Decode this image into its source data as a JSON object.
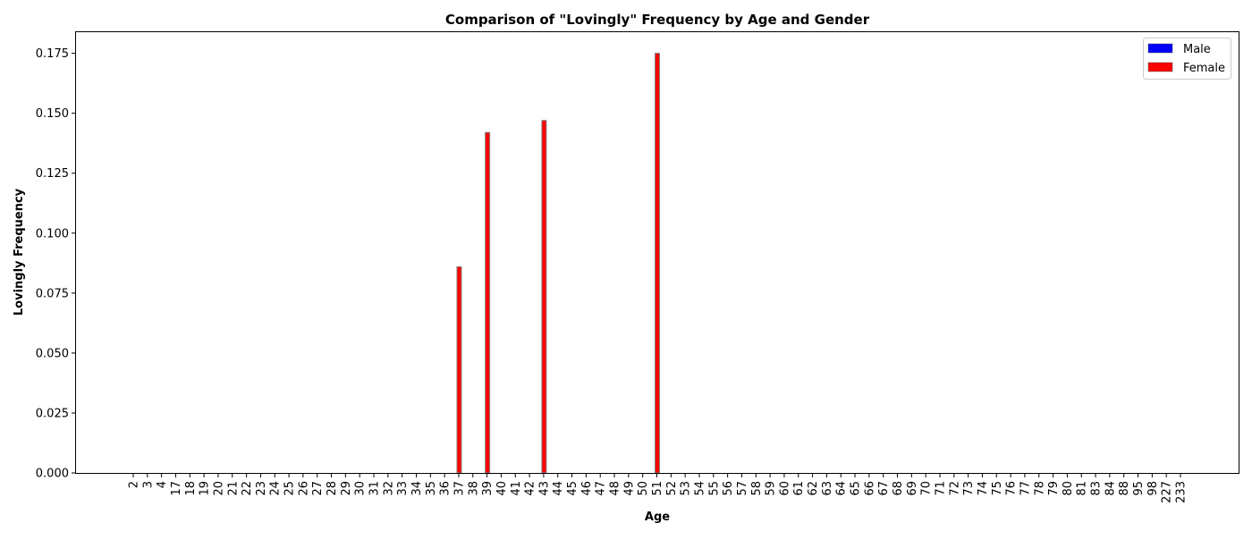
{
  "chart_data": {
    "type": "bar",
    "title": "Comparison of \"Lovingly\" Frequency by Age and Gender",
    "xlabel": "Age",
    "ylabel": "Lovingly Frequency",
    "ylim": [
      0,
      0.1838
    ],
    "yticks": [
      "0.000",
      "0.025",
      "0.050",
      "0.075",
      "0.100",
      "0.125",
      "0.150",
      "0.175"
    ],
    "ytick_values": [
      0,
      0.025,
      0.05,
      0.075,
      0.1,
      0.125,
      0.15,
      0.175
    ],
    "grid": false,
    "legend_position": "top-right",
    "categories": [
      "2",
      "3",
      "4",
      "17",
      "18",
      "19",
      "20",
      "21",
      "22",
      "23",
      "24",
      "25",
      "26",
      "27",
      "28",
      "29",
      "30",
      "31",
      "32",
      "33",
      "34",
      "35",
      "36",
      "37",
      "38",
      "39",
      "40",
      "41",
      "42",
      "43",
      "44",
      "45",
      "46",
      "47",
      "48",
      "49",
      "50",
      "51",
      "52",
      "53",
      "54",
      "55",
      "56",
      "57",
      "58",
      "59",
      "60",
      "61",
      "62",
      "63",
      "64",
      "65",
      "66",
      "67",
      "68",
      "69",
      "70",
      "71",
      "72",
      "73",
      "74",
      "75",
      "76",
      "77",
      "78",
      "79",
      "80",
      "81",
      "83",
      "84",
      "88",
      "95",
      "98",
      "227",
      "233"
    ],
    "series": [
      {
        "name": "Male",
        "color": "#0000ff",
        "values": [
          0,
          0,
          0,
          0,
          0,
          0,
          0,
          0,
          0,
          0,
          0,
          0,
          0,
          0,
          0,
          0,
          0,
          0,
          0,
          0,
          0,
          0,
          0,
          0,
          0,
          0,
          0,
          0,
          0,
          0,
          0,
          0,
          0,
          0,
          0,
          0,
          0,
          0,
          0,
          0,
          0,
          0,
          0,
          0,
          0,
          0,
          0,
          0,
          0,
          0,
          0,
          0,
          0,
          0,
          0,
          0,
          0,
          0,
          0,
          0,
          0,
          0,
          0,
          0,
          0,
          0,
          0,
          0,
          0,
          0,
          0,
          0,
          0,
          0,
          0
        ]
      },
      {
        "name": "Female",
        "color": "#ff0000",
        "values": [
          0,
          0,
          0,
          0,
          0,
          0,
          0,
          0,
          0,
          0,
          0,
          0,
          0,
          0,
          0,
          0,
          0,
          0,
          0,
          0,
          0,
          0,
          0,
          0.086,
          0,
          0.142,
          0,
          0,
          0,
          0.147,
          0,
          0,
          0,
          0,
          0,
          0,
          0,
          0.175,
          0,
          0,
          0,
          0,
          0,
          0,
          0,
          0,
          0,
          0,
          0,
          0,
          0,
          0,
          0,
          0,
          0,
          0,
          0,
          0,
          0,
          0,
          0,
          0,
          0,
          0,
          0,
          0,
          0,
          0,
          0,
          0,
          0,
          0,
          0,
          0,
          0
        ]
      }
    ]
  }
}
